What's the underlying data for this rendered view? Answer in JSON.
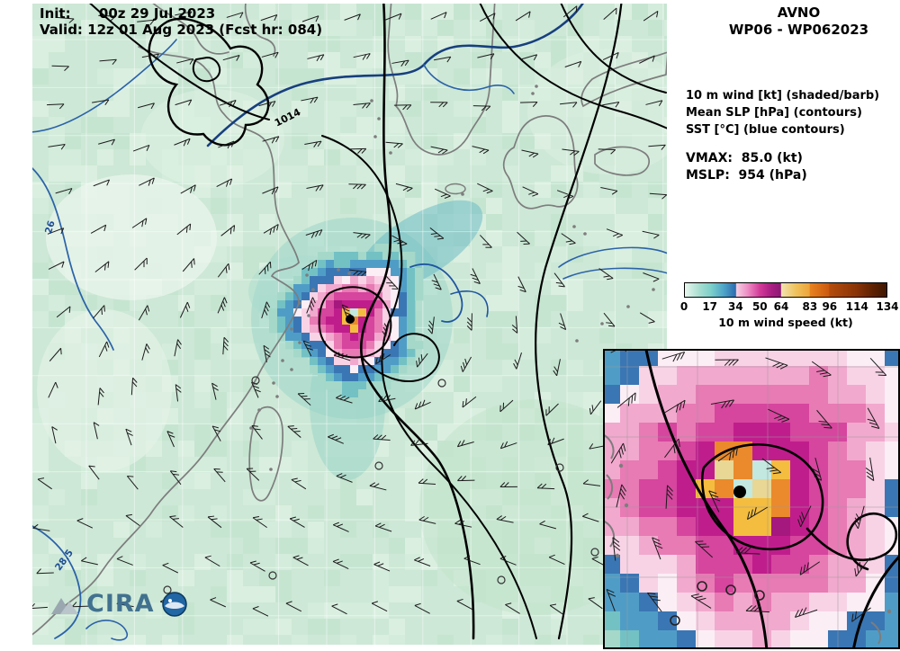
{
  "titles": {
    "init": "Init:      00z 29 Jul 2023",
    "valid": "Valid: 12z 01 Aug 2023 (Fcst hr: 084)"
  },
  "header": {
    "model": "AVNO",
    "storm": "WP06 - WP062023"
  },
  "legend": {
    "lines": [
      "10 m wind [kt] (shaded/barb)",
      "Mean SLP [hPa] (contours)",
      "SST [°C] (blue contours)"
    ],
    "vmax": "VMAX:  85.0 (kt)",
    "mslp": "MSLP:  954 (hPa)"
  },
  "colorbar": {
    "ticks": [
      "0",
      "17",
      "34",
      "50",
      "64",
      "83",
      "96",
      "114",
      "134"
    ],
    "label": "10 m wind speed (kt)",
    "key_colors": {
      "calm_green": "#cde8d6",
      "teal_17_34": "#4f9dc6",
      "pink_34_50": "#e87ab4",
      "magenta_50_64": "#c01d8c",
      "gold_64_83": "#f4bd3f",
      "orange_83_96": "#ea8a2c",
      "dark_brown_134": "#3f1702",
      "sst_contour_blue": "#2b62a8"
    }
  },
  "map_labels": {
    "slp": "1014",
    "sst_upper": "26",
    "sst_lower": "28.5"
  },
  "logo": {
    "text": "CIRA"
  }
}
